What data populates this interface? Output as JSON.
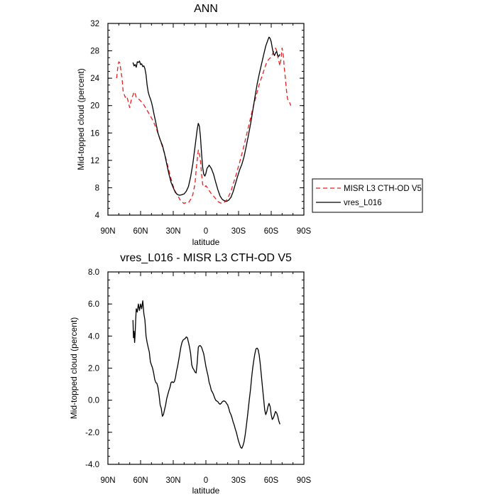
{
  "chart_data": [
    {
      "type": "line",
      "title": "ANN",
      "xlabel": "latitude",
      "ylabel": "Mid-topped cloud (percent)",
      "xlim": [
        90,
        -90
      ],
      "ylim": [
        4,
        32
      ],
      "x_tick_values": [
        90,
        60,
        30,
        0,
        -30,
        -60,
        -90
      ],
      "x_tick_labels": [
        "90N",
        "60N",
        "30N",
        "0",
        "30S",
        "60S",
        "90S"
      ],
      "y_tick_values": [
        4,
        8,
        12,
        16,
        20,
        24,
        28,
        32
      ],
      "y_tick_labels": [
        "4",
        "8",
        "12",
        "16",
        "20",
        "24",
        "28",
        "32"
      ],
      "legend_position": "right",
      "series": [
        {
          "name": "MISR L3 CTH-OD V5",
          "color": "#ee1c1c",
          "dash": "dashed",
          "x": [
            82,
            81,
            80,
            79,
            78,
            77,
            76,
            75,
            74,
            73,
            72,
            71,
            70,
            69,
            68,
            67,
            66,
            65,
            64,
            62,
            60,
            57,
            54,
            51,
            48,
            45,
            42,
            40,
            38,
            36,
            34,
            32,
            30,
            28,
            26,
            24,
            22,
            20,
            19,
            18,
            16,
            14,
            12,
            10,
            9,
            8,
            7,
            6,
            5,
            4,
            3,
            2,
            1,
            0,
            -1,
            -2,
            -3,
            -5,
            -7,
            -9,
            -11,
            -13,
            -15,
            -17,
            -19,
            -21,
            -23,
            -25,
            -28,
            -31,
            -34,
            -37,
            -40,
            -43,
            -46,
            -49,
            -52,
            -54,
            -56,
            -58,
            -60,
            -62,
            -64,
            -65,
            -66,
            -67,
            -68,
            -69,
            -70,
            -71,
            -72,
            -73,
            -74,
            -75,
            -76,
            -77,
            -78
          ],
          "y": [
            24,
            25.5,
            26.4,
            26.2,
            25,
            24,
            22,
            21.6,
            21.2,
            21.4,
            21,
            20.3,
            19.7,
            20.5,
            21.2,
            21.5,
            22,
            21.8,
            21.2,
            21,
            20.7,
            20.1,
            19.3,
            18.5,
            17.6,
            16.4,
            15,
            14,
            13,
            11.8,
            10.5,
            9.3,
            8.2,
            7.4,
            6.9,
            6.3,
            5.9,
            5.7,
            5.8,
            5.75,
            5.8,
            6.3,
            7,
            8.6,
            10.5,
            12,
            13.5,
            13,
            12,
            10,
            8.5,
            8.2,
            8.1,
            8.3,
            8.1,
            7.9,
            7.6,
            7.1,
            6.8,
            6.4,
            6,
            5.8,
            5.7,
            5.9,
            6.2,
            6.8,
            7.5,
            8.5,
            10,
            11.7,
            13.5,
            15.5,
            17.5,
            19.5,
            21.3,
            23.1,
            24.5,
            25.5,
            26.4,
            26.8,
            27.1,
            27.8,
            28.4,
            28,
            27.2,
            26.5,
            25.8,
            26.8,
            28.4,
            27.5,
            25.5,
            24,
            22.2,
            21,
            20.6,
            20.4,
            20
          ]
        },
        {
          "name": "vres_L016",
          "color": "#000000",
          "dash": "solid",
          "x": [
            67,
            66,
            65,
            64,
            63,
            62,
            61,
            60,
            59,
            58,
            57,
            56,
            55,
            54,
            53,
            52,
            51,
            50,
            49,
            48,
            46,
            44,
            42,
            40,
            38,
            36,
            34,
            32,
            30,
            28,
            26,
            24,
            22,
            20,
            18,
            16,
            14,
            12,
            10,
            8,
            7,
            6,
            5,
            4,
            3,
            2,
            1,
            0,
            -1,
            -3,
            -5,
            -7,
            -9,
            -11,
            -13,
            -15,
            -17,
            -19,
            -21,
            -23,
            -25,
            -27,
            -29,
            -31,
            -33,
            -35,
            -37,
            -39,
            -41,
            -43,
            -45,
            -47,
            -49,
            -51,
            -53,
            -55,
            -57,
            -58,
            -59,
            -60,
            -61,
            -62,
            -63,
            -64,
            -65,
            -66,
            -67,
            -68
          ],
          "y": [
            26.3,
            25.8,
            26,
            25.6,
            26.4,
            26.3,
            26.5,
            26,
            26.1,
            25.7,
            25.8,
            25.4,
            24.5,
            23,
            22,
            21.4,
            21,
            20.5,
            19.8,
            19,
            17.5,
            16,
            15,
            14.2,
            13,
            11.5,
            10,
            8.8,
            8,
            7.3,
            7,
            6.9,
            7,
            7.1,
            7.5,
            8.2,
            9.6,
            11.5,
            14,
            16.5,
            17.4,
            17,
            15.5,
            13,
            11,
            10,
            9.7,
            10.1,
            10.8,
            11.3,
            10.8,
            10,
            8.8,
            7.7,
            6.8,
            6.3,
            6.1,
            6,
            6.2,
            6.6,
            7.4,
            8.5,
            9.6,
            10.6,
            11.4,
            12.5,
            14,
            15.6,
            17.3,
            19.2,
            21.2,
            23.1,
            24.6,
            26,
            27.4,
            28.7,
            29.6,
            30,
            29.8,
            29.3,
            28.4,
            27.6,
            27.3,
            27.7,
            27.9,
            27.3,
            27.2,
            27.5
          ]
        }
      ]
    },
    {
      "type": "line",
      "title": "vres_L016 - MISR L3 CTH-OD V5",
      "xlabel": "latitude",
      "ylabel": "Mid-topped cloud (percent)",
      "xlim": [
        90,
        -90
      ],
      "ylim": [
        -4,
        8
      ],
      "x_tick_values": [
        90,
        60,
        30,
        0,
        -30,
        -60,
        -90
      ],
      "x_tick_labels": [
        "90N",
        "60N",
        "30N",
        "0",
        "30S",
        "60S",
        "90S"
      ],
      "y_tick_values": [
        -4,
        -2,
        0,
        2,
        4,
        6,
        8
      ],
      "y_tick_labels": [
        "-4.0",
        "-2.0",
        "0.0",
        "2.0",
        "4.0",
        "6.0",
        "8.0"
      ],
      "series": [
        {
          "color": "#000000",
          "dash": "solid",
          "x": [
            67,
            66.5,
            66,
            65.5,
            65,
            64.5,
            64,
            63,
            62,
            61,
            60,
            59,
            58,
            57,
            56,
            55,
            54,
            53,
            52,
            51,
            50,
            49,
            48,
            47,
            46,
            45,
            44,
            43,
            42,
            41,
            40,
            39,
            38,
            37,
            36,
            35,
            34,
            33,
            32,
            31,
            30,
            29,
            28,
            27,
            26,
            25,
            24,
            23,
            22,
            21,
            20,
            19,
            18,
            17,
            16,
            15,
            14,
            13,
            12,
            11,
            10,
            9,
            8,
            7,
            6,
            5,
            4,
            3,
            2,
            1,
            0,
            -1,
            -2,
            -3,
            -4,
            -5,
            -6,
            -7,
            -8,
            -9,
            -10,
            -11,
            -12,
            -13,
            -14,
            -15,
            -16,
            -17,
            -18,
            -19,
            -20,
            -21,
            -22,
            -23,
            -24,
            -25,
            -26,
            -27,
            -28,
            -29,
            -30,
            -31,
            -32,
            -33,
            -34,
            -35,
            -36,
            -37,
            -38,
            -39,
            -40,
            -41,
            -42,
            -43,
            -44,
            -45,
            -46,
            -47,
            -48,
            -49,
            -50,
            -51,
            -52,
            -53,
            -54,
            -55,
            -56,
            -57,
            -58,
            -59,
            -60,
            -61,
            -62,
            -63,
            -64,
            -65,
            -66,
            -67,
            -68
          ],
          "y": [
            5,
            3.9,
            4.3,
            3.6,
            4.1,
            5,
            5.7,
            5.5,
            6,
            5.6,
            6,
            5.7,
            6.2,
            5.4,
            5,
            4,
            3.6,
            3.3,
            3,
            2.4,
            2.2,
            2,
            1.7,
            1.3,
            1.1,
            1.05,
            0.8,
            0.3,
            -0.3,
            -0.5,
            -1,
            -0.9,
            -0.6,
            -0.3,
            0.1,
            0.35,
            0.6,
            0.8,
            1.1,
            1.15,
            1.1,
            1.15,
            1.4,
            1.8,
            2.1,
            2.5,
            2.9,
            3.3,
            3.6,
            3.75,
            3.8,
            3.85,
            3.95,
            3.9,
            3.6,
            3.3,
            2.9,
            2.2,
            2,
            1.9,
            1.75,
            1.7,
            2.3,
            3.3,
            3.4,
            3.4,
            3.3,
            3.1,
            2.9,
            2.5,
            2.1,
            1.8,
            1.5,
            1.1,
            0.9,
            0.6,
            0.5,
            0.35,
            0.15,
            0,
            -0.05,
            -0.1,
            -0.2,
            -0.25,
            -0.2,
            -0.1,
            -0.05,
            -0.05,
            -0.1,
            -0.2,
            -0.3,
            -0.5,
            -0.75,
            -0.9,
            -1.1,
            -1.35,
            -1.55,
            -1.8,
            -2,
            -2.3,
            -2.55,
            -2.75,
            -2.95,
            -3,
            -2.85,
            -2.6,
            -2.2,
            -1.7,
            -1.1,
            -0.5,
            0.1,
            0.7,
            1.4,
            2,
            2.5,
            2.9,
            3.2,
            3.25,
            3.15,
            2.8,
            2.2,
            1.5,
            0.8,
            0.1,
            -0.6,
            -0.9,
            -0.7,
            -0.4,
            -0.2,
            -0.4,
            -0.9,
            -1.2,
            -1.1,
            -0.9,
            -0.7,
            -0.8,
            -1,
            -1.3,
            -1.5
          ]
        }
      ]
    }
  ]
}
